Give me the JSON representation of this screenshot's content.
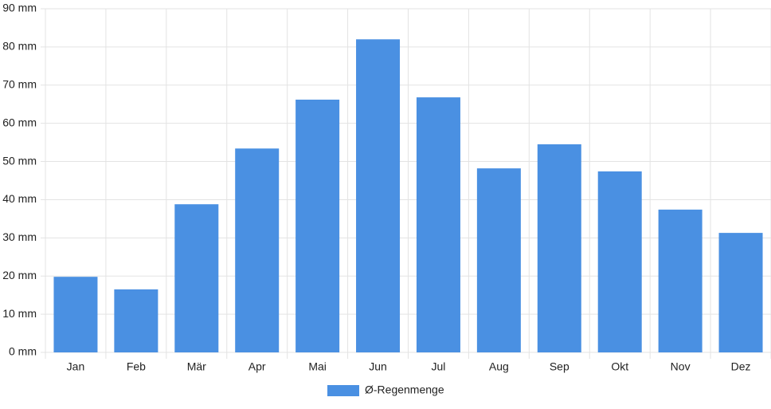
{
  "chart_data": {
    "type": "bar",
    "categories": [
      "Jan",
      "Feb",
      "Mär",
      "Apr",
      "Mai",
      "Jun",
      "Jul",
      "Aug",
      "Sep",
      "Okt",
      "Nov",
      "Dez"
    ],
    "series": [
      {
        "name": "Ø-Regenmenge",
        "color": "#4a90e2",
        "values": [
          19.8,
          16.5,
          38.8,
          53.4,
          66.2,
          82.0,
          66.8,
          48.2,
          54.5,
          47.4,
          37.4,
          31.3
        ]
      }
    ],
    "ylim": [
      0,
      90
    ],
    "yticks": [
      {
        "value": 0,
        "label": "0 mm"
      },
      {
        "value": 10,
        "label": "10 mm"
      },
      {
        "value": 20,
        "label": "20 mm"
      },
      {
        "value": 30,
        "label": "30 mm"
      },
      {
        "value": 40,
        "label": "40 mm"
      },
      {
        "value": 50,
        "label": "50 mm"
      },
      {
        "value": 60,
        "label": "60 mm"
      },
      {
        "value": 70,
        "label": "70 mm"
      },
      {
        "value": 80,
        "label": "80 mm"
      },
      {
        "value": 90,
        "label": "90 mm"
      }
    ],
    "grid": true,
    "legend": "bottom"
  }
}
